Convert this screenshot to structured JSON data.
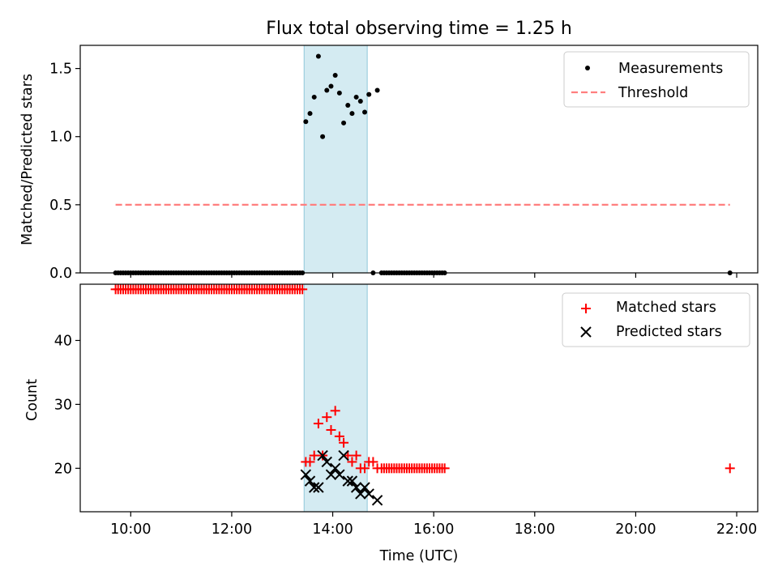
{
  "chart_data": [
    {
      "type": "scatter",
      "title": "Flux total observing time = 1.25 h",
      "xlabel": "",
      "ylabel": "Matched/Predicted stars",
      "xlim": [
        "09:00",
        "22:25"
      ],
      "ylim": [
        0,
        1.67
      ],
      "yticks": [
        "0.0",
        "0.5",
        "1.0",
        "1.5"
      ],
      "legend": {
        "position": "top-right",
        "entries": [
          "Measurements",
          "Threshold"
        ]
      },
      "shaded_interval": [
        "13:26",
        "14:41"
      ],
      "series": [
        {
          "name": "Measurements",
          "marker": "dot",
          "color": "#000000",
          "points": [
            [
              "09:42",
              0
            ],
            [
              "09:45",
              0
            ],
            [
              "09:48",
              0
            ],
            [
              "09:51",
              0
            ],
            [
              "09:54",
              0
            ],
            [
              "09:57",
              0
            ],
            [
              "10:00",
              0
            ],
            [
              "10:03",
              0
            ],
            [
              "10:06",
              0
            ],
            [
              "10:09",
              0
            ],
            [
              "10:12",
              0
            ],
            [
              "10:15",
              0
            ],
            [
              "10:18",
              0
            ],
            [
              "10:21",
              0
            ],
            [
              "10:24",
              0
            ],
            [
              "10:27",
              0
            ],
            [
              "10:30",
              0
            ],
            [
              "10:33",
              0
            ],
            [
              "10:36",
              0
            ],
            [
              "10:39",
              0
            ],
            [
              "10:42",
              0
            ],
            [
              "10:45",
              0
            ],
            [
              "10:48",
              0
            ],
            [
              "10:51",
              0
            ],
            [
              "10:54",
              0
            ],
            [
              "10:57",
              0
            ],
            [
              "11:00",
              0
            ],
            [
              "11:03",
              0
            ],
            [
              "11:06",
              0
            ],
            [
              "11:09",
              0
            ],
            [
              "11:12",
              0
            ],
            [
              "11:15",
              0
            ],
            [
              "11:18",
              0
            ],
            [
              "11:21",
              0
            ],
            [
              "11:24",
              0
            ],
            [
              "11:27",
              0
            ],
            [
              "11:30",
              0
            ],
            [
              "11:33",
              0
            ],
            [
              "11:36",
              0
            ],
            [
              "11:39",
              0
            ],
            [
              "11:42",
              0
            ],
            [
              "11:45",
              0
            ],
            [
              "11:48",
              0
            ],
            [
              "11:51",
              0
            ],
            [
              "11:54",
              0
            ],
            [
              "11:57",
              0
            ],
            [
              "12:00",
              0
            ],
            [
              "12:03",
              0
            ],
            [
              "12:06",
              0
            ],
            [
              "12:09",
              0
            ],
            [
              "12:12",
              0
            ],
            [
              "12:15",
              0
            ],
            [
              "12:18",
              0
            ],
            [
              "12:21",
              0
            ],
            [
              "12:24",
              0
            ],
            [
              "12:27",
              0
            ],
            [
              "12:30",
              0
            ],
            [
              "12:33",
              0
            ],
            [
              "12:36",
              0
            ],
            [
              "12:39",
              0
            ],
            [
              "12:42",
              0
            ],
            [
              "12:45",
              0
            ],
            [
              "12:48",
              0
            ],
            [
              "12:51",
              0
            ],
            [
              "12:54",
              0
            ],
            [
              "12:57",
              0
            ],
            [
              "13:00",
              0
            ],
            [
              "13:03",
              0
            ],
            [
              "13:06",
              0
            ],
            [
              "13:09",
              0
            ],
            [
              "13:12",
              0
            ],
            [
              "13:15",
              0
            ],
            [
              "13:18",
              0
            ],
            [
              "13:21",
              0
            ],
            [
              "13:24",
              0
            ],
            [
              "13:28",
              1.11
            ],
            [
              "13:33",
              1.17
            ],
            [
              "13:38",
              1.29
            ],
            [
              "13:43",
              1.59
            ],
            [
              "13:48",
              1.0
            ],
            [
              "13:53",
              1.34
            ],
            [
              "13:58",
              1.37
            ],
            [
              "14:03",
              1.45
            ],
            [
              "14:08",
              1.32
            ],
            [
              "14:13",
              1.1
            ],
            [
              "14:18",
              1.23
            ],
            [
              "14:23",
              1.17
            ],
            [
              "14:28",
              1.29
            ],
            [
              "14:33",
              1.26
            ],
            [
              "14:38",
              1.18
            ],
            [
              "14:43",
              1.31
            ],
            [
              "14:48",
              0
            ],
            [
              "14:53",
              1.34
            ],
            [
              "14:58",
              0
            ],
            [
              "15:01",
              0
            ],
            [
              "15:04",
              0
            ],
            [
              "15:07",
              0
            ],
            [
              "15:10",
              0
            ],
            [
              "15:13",
              0
            ],
            [
              "15:16",
              0
            ],
            [
              "15:19",
              0
            ],
            [
              "15:22",
              0
            ],
            [
              "15:25",
              0
            ],
            [
              "15:28",
              0
            ],
            [
              "15:31",
              0
            ],
            [
              "15:34",
              0
            ],
            [
              "15:37",
              0
            ],
            [
              "15:40",
              0
            ],
            [
              "15:43",
              0
            ],
            [
              "15:46",
              0
            ],
            [
              "15:49",
              0
            ],
            [
              "15:52",
              0
            ],
            [
              "15:55",
              0
            ],
            [
              "15:58",
              0
            ],
            [
              "16:01",
              0
            ],
            [
              "16:04",
              0
            ],
            [
              "16:07",
              0
            ],
            [
              "16:10",
              0
            ],
            [
              "16:13",
              0
            ],
            [
              "21:52",
              0
            ]
          ]
        },
        {
          "name": "Threshold",
          "style": "dashed",
          "color": "#ff7f7f",
          "points": [
            [
              "09:42",
              0.5
            ],
            [
              "21:52",
              0.5
            ]
          ]
        }
      ]
    },
    {
      "type": "scatter",
      "title": "",
      "xlabel": "Time (UTC)",
      "ylabel": "Count",
      "xlim": [
        "09:00",
        "22:25"
      ],
      "ylim": [
        13.2,
        48.8
      ],
      "xticks": [
        "10:00",
        "12:00",
        "14:00",
        "16:00",
        "18:00",
        "20:00",
        "22:00"
      ],
      "yticks": [
        "20",
        "30",
        "40"
      ],
      "legend": {
        "position": "top-right",
        "entries": [
          "Matched stars",
          "Predicted stars"
        ]
      },
      "shaded_interval": [
        "13:26",
        "14:41"
      ],
      "series": [
        {
          "name": "Matched stars",
          "marker": "plus",
          "color": "#ff0000",
          "points": [
            [
              "09:42",
              48
            ],
            [
              "09:45",
              48
            ],
            [
              "09:48",
              48
            ],
            [
              "09:51",
              48
            ],
            [
              "09:54",
              48
            ],
            [
              "09:57",
              48
            ],
            [
              "10:00",
              48
            ],
            [
              "10:03",
              48
            ],
            [
              "10:06",
              48
            ],
            [
              "10:09",
              48
            ],
            [
              "10:12",
              48
            ],
            [
              "10:15",
              48
            ],
            [
              "10:18",
              48
            ],
            [
              "10:21",
              48
            ],
            [
              "10:24",
              48
            ],
            [
              "10:27",
              48
            ],
            [
              "10:30",
              48
            ],
            [
              "10:33",
              48
            ],
            [
              "10:36",
              48
            ],
            [
              "10:39",
              48
            ],
            [
              "10:42",
              48
            ],
            [
              "10:45",
              48
            ],
            [
              "10:48",
              48
            ],
            [
              "10:51",
              48
            ],
            [
              "10:54",
              48
            ],
            [
              "10:57",
              48
            ],
            [
              "11:00",
              48
            ],
            [
              "11:03",
              48
            ],
            [
              "11:06",
              48
            ],
            [
              "11:09",
              48
            ],
            [
              "11:12",
              48
            ],
            [
              "11:15",
              48
            ],
            [
              "11:18",
              48
            ],
            [
              "11:21",
              48
            ],
            [
              "11:24",
              48
            ],
            [
              "11:27",
              48
            ],
            [
              "11:30",
              48
            ],
            [
              "11:33",
              48
            ],
            [
              "11:36",
              48
            ],
            [
              "11:39",
              48
            ],
            [
              "11:42",
              48
            ],
            [
              "11:45",
              48
            ],
            [
              "11:48",
              48
            ],
            [
              "11:51",
              48
            ],
            [
              "11:54",
              48
            ],
            [
              "11:57",
              48
            ],
            [
              "12:00",
              48
            ],
            [
              "12:03",
              48
            ],
            [
              "12:06",
              48
            ],
            [
              "12:09",
              48
            ],
            [
              "12:12",
              48
            ],
            [
              "12:15",
              48
            ],
            [
              "12:18",
              48
            ],
            [
              "12:21",
              48
            ],
            [
              "12:24",
              48
            ],
            [
              "12:27",
              48
            ],
            [
              "12:30",
              48
            ],
            [
              "12:33",
              48
            ],
            [
              "12:36",
              48
            ],
            [
              "12:39",
              48
            ],
            [
              "12:42",
              48
            ],
            [
              "12:45",
              48
            ],
            [
              "12:48",
              48
            ],
            [
              "12:51",
              48
            ],
            [
              "12:54",
              48
            ],
            [
              "12:57",
              48
            ],
            [
              "13:00",
              48
            ],
            [
              "13:03",
              48
            ],
            [
              "13:06",
              48
            ],
            [
              "13:09",
              48
            ],
            [
              "13:12",
              48
            ],
            [
              "13:15",
              48
            ],
            [
              "13:18",
              48
            ],
            [
              "13:21",
              48
            ],
            [
              "13:24",
              48
            ],
            [
              "13:28",
              21
            ],
            [
              "13:33",
              21
            ],
            [
              "13:38",
              22
            ],
            [
              "13:43",
              27
            ],
            [
              "13:48",
              22
            ],
            [
              "13:53",
              28
            ],
            [
              "13:58",
              26
            ],
            [
              "14:03",
              29
            ],
            [
              "14:08",
              25
            ],
            [
              "14:13",
              24
            ],
            [
              "14:18",
              22
            ],
            [
              "14:23",
              21
            ],
            [
              "14:28",
              22
            ],
            [
              "14:33",
              20
            ],
            [
              "14:38",
              20
            ],
            [
              "14:43",
              21
            ],
            [
              "14:48",
              21
            ],
            [
              "14:53",
              20
            ],
            [
              "14:58",
              20
            ],
            [
              "15:01",
              20
            ],
            [
              "15:04",
              20
            ],
            [
              "15:07",
              20
            ],
            [
              "15:10",
              20
            ],
            [
              "15:13",
              20
            ],
            [
              "15:16",
              20
            ],
            [
              "15:19",
              20
            ],
            [
              "15:22",
              20
            ],
            [
              "15:25",
              20
            ],
            [
              "15:28",
              20
            ],
            [
              "15:31",
              20
            ],
            [
              "15:34",
              20
            ],
            [
              "15:37",
              20
            ],
            [
              "15:40",
              20
            ],
            [
              "15:43",
              20
            ],
            [
              "15:46",
              20
            ],
            [
              "15:49",
              20
            ],
            [
              "15:52",
              20
            ],
            [
              "15:55",
              20
            ],
            [
              "15:58",
              20
            ],
            [
              "16:01",
              20
            ],
            [
              "16:04",
              20
            ],
            [
              "16:07",
              20
            ],
            [
              "16:10",
              20
            ],
            [
              "16:13",
              20
            ],
            [
              "21:52",
              20
            ]
          ]
        },
        {
          "name": "Predicted stars",
          "marker": "x",
          "color": "#000000",
          "points": [
            [
              "13:28",
              19
            ],
            [
              "13:33",
              18
            ],
            [
              "13:38",
              17
            ],
            [
              "13:43",
              17
            ],
            [
              "13:48",
              22
            ],
            [
              "13:53",
              21
            ],
            [
              "13:58",
              19
            ],
            [
              "14:03",
              20
            ],
            [
              "14:08",
              19
            ],
            [
              "14:13",
              22
            ],
            [
              "14:18",
              18
            ],
            [
              "14:23",
              18
            ],
            [
              "14:28",
              17
            ],
            [
              "14:33",
              16
            ],
            [
              "14:38",
              17
            ],
            [
              "14:43",
              16
            ],
            [
              "14:53",
              15
            ]
          ]
        }
      ]
    }
  ]
}
